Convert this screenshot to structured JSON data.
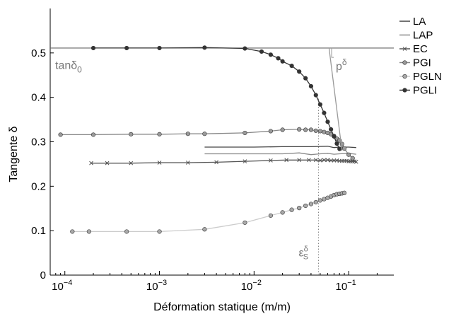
{
  "chart_data": {
    "type": "line",
    "title": "",
    "xlabel": "Déformation statique (m/m)",
    "ylabel": "Tangente δ",
    "x_scale": "log",
    "xlim": [
      7e-05,
      0.3
    ],
    "ylim": [
      0,
      0.6
    ],
    "x_ticks": [
      {
        "value": 0.0001,
        "base": "10",
        "exp": "−4"
      },
      {
        "value": 0.001,
        "base": "10",
        "exp": "−3"
      },
      {
        "value": 0.01,
        "base": "10",
        "exp": "−2"
      },
      {
        "value": 0.1,
        "base": "10",
        "exp": "−1"
      }
    ],
    "y_ticks": [
      0,
      0.1,
      0.2,
      0.3,
      0.4,
      0.5
    ],
    "grid": false,
    "legend_position": "outside-right",
    "annotations": {
      "tan_delta0": {
        "base": "tanδ",
        "sub": "0",
        "y": 0.51,
        "x": 8e-05
      },
      "p_delta": {
        "base": "p",
        "sup": "δ",
        "x": 0.065,
        "y": 0.465
      },
      "eps_s_delta": {
        "base": "ε",
        "sub": "S",
        "sup": "δ",
        "x": 0.048,
        "y": 0.045
      },
      "vline_x": 0.048,
      "hline_y": 0.511
    },
    "series": [
      {
        "name": "LA",
        "marker": "none",
        "color": "#444444",
        "points": [
          [
            0.003,
            0.288
          ],
          [
            0.005,
            0.288
          ],
          [
            0.01,
            0.288
          ],
          [
            0.02,
            0.289
          ],
          [
            0.04,
            0.289
          ],
          [
            0.06,
            0.29
          ],
          [
            0.07,
            0.287
          ],
          [
            0.08,
            0.288
          ],
          [
            0.1,
            0.288
          ],
          [
            0.12,
            0.287
          ]
        ]
      },
      {
        "name": "LAP",
        "marker": "none",
        "color": "#888888",
        "points": [
          [
            0.003,
            0.273
          ],
          [
            0.005,
            0.273
          ],
          [
            0.01,
            0.273
          ],
          [
            0.02,
            0.273
          ],
          [
            0.03,
            0.275
          ],
          [
            0.04,
            0.271
          ],
          [
            0.05,
            0.273
          ],
          [
            0.06,
            0.274
          ],
          [
            0.07,
            0.272
          ],
          [
            0.08,
            0.273
          ],
          [
            0.1,
            0.274
          ],
          [
            0.12,
            0.272
          ]
        ]
      },
      {
        "name": "EC",
        "marker": "x",
        "color": "#555555",
        "points": [
          [
            0.00019,
            0.252
          ],
          [
            0.00028,
            0.252
          ],
          [
            0.0005,
            0.252
          ],
          [
            0.001,
            0.253
          ],
          [
            0.002,
            0.253
          ],
          [
            0.004,
            0.254
          ],
          [
            0.008,
            0.256
          ],
          [
            0.015,
            0.258
          ],
          [
            0.022,
            0.259
          ],
          [
            0.03,
            0.259
          ],
          [
            0.038,
            0.259
          ],
          [
            0.045,
            0.259
          ],
          [
            0.05,
            0.258
          ],
          [
            0.055,
            0.259
          ],
          [
            0.06,
            0.259
          ],
          [
            0.065,
            0.258
          ],
          [
            0.07,
            0.258
          ],
          [
            0.075,
            0.258
          ],
          [
            0.08,
            0.257
          ],
          [
            0.085,
            0.257
          ],
          [
            0.09,
            0.257
          ],
          [
            0.095,
            0.257
          ],
          [
            0.1,
            0.256
          ],
          [
            0.105,
            0.256
          ],
          [
            0.11,
            0.256
          ],
          [
            0.115,
            0.256
          ],
          [
            0.12,
            0.255
          ]
        ]
      },
      {
        "name": "PGI",
        "marker": "o",
        "color": "#888888",
        "markerFill": "#9a9a9a",
        "points": [
          [
            9e-05,
            0.316
          ],
          [
            0.0002,
            0.316
          ],
          [
            0.0005,
            0.317
          ],
          [
            0.001,
            0.317
          ],
          [
            0.002,
            0.318
          ],
          [
            0.003,
            0.318
          ],
          [
            0.008,
            0.32
          ],
          [
            0.015,
            0.324
          ],
          [
            0.02,
            0.327
          ],
          [
            0.03,
            0.328
          ],
          [
            0.035,
            0.327
          ],
          [
            0.04,
            0.327
          ],
          [
            0.045,
            0.325
          ],
          [
            0.05,
            0.324
          ],
          [
            0.055,
            0.322
          ],
          [
            0.06,
            0.32
          ],
          [
            0.065,
            0.317
          ],
          [
            0.07,
            0.313
          ],
          [
            0.075,
            0.307
          ],
          [
            0.08,
            0.303
          ],
          [
            0.085,
            0.295
          ],
          [
            0.09,
            0.285
          ],
          [
            0.1,
            0.271
          ],
          [
            0.11,
            0.263
          ]
        ]
      },
      {
        "name": "PGLN",
        "marker": "o",
        "color": "#cccccc",
        "markerFill": "#a9a9a9",
        "points": [
          [
            0.00012,
            0.098
          ],
          [
            0.00018,
            0.098
          ],
          [
            0.00045,
            0.098
          ],
          [
            0.001,
            0.098
          ],
          [
            0.003,
            0.103
          ],
          [
            0.008,
            0.118
          ],
          [
            0.015,
            0.134
          ],
          [
            0.02,
            0.141
          ],
          [
            0.025,
            0.147
          ],
          [
            0.03,
            0.151
          ],
          [
            0.035,
            0.156
          ],
          [
            0.04,
            0.16
          ],
          [
            0.045,
            0.164
          ],
          [
            0.05,
            0.168
          ],
          [
            0.055,
            0.171
          ],
          [
            0.06,
            0.174
          ],
          [
            0.065,
            0.177
          ],
          [
            0.07,
            0.18
          ],
          [
            0.075,
            0.182
          ],
          [
            0.08,
            0.183
          ],
          [
            0.085,
            0.184
          ],
          [
            0.09,
            0.185
          ]
        ]
      },
      {
        "name": "PGLI",
        "marker": "o",
        "color": "#333333",
        "markerFill": "#333333",
        "points": [
          [
            0.0002,
            0.511
          ],
          [
            0.00045,
            0.511
          ],
          [
            0.001,
            0.511
          ],
          [
            0.003,
            0.512
          ],
          [
            0.008,
            0.51
          ],
          [
            0.012,
            0.503
          ],
          [
            0.015,
            0.496
          ],
          [
            0.018,
            0.488
          ],
          [
            0.02,
            0.481
          ],
          [
            0.025,
            0.471
          ],
          [
            0.03,
            0.458
          ],
          [
            0.035,
            0.443
          ],
          [
            0.04,
            0.425
          ],
          [
            0.045,
            0.405
          ],
          [
            0.05,
            0.384
          ],
          [
            0.055,
            0.365
          ],
          [
            0.06,
            0.345
          ],
          [
            0.065,
            0.328
          ],
          [
            0.07,
            0.312
          ],
          [
            0.075,
            0.296
          ],
          [
            0.08,
            0.284
          ]
        ]
      },
      {
        "name": "",
        "marker": "none",
        "color": "#999999",
        "role": "fit-line",
        "points": [
          [
            0.062,
            0.511
          ],
          [
            0.085,
            0.28
          ]
        ]
      }
    ]
  }
}
